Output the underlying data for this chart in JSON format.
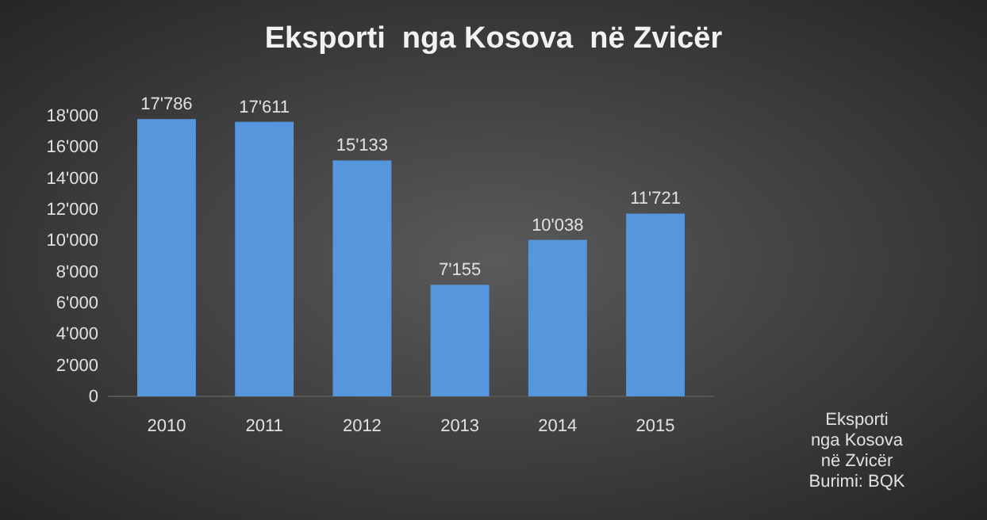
{
  "chart_data": {
    "type": "bar",
    "title": "Eksporti  nga Kosova  në Zvicër",
    "categories": [
      "2010",
      "2011",
      "2012",
      "2013",
      "2014",
      "2015"
    ],
    "values": [
      17786,
      17611,
      15133,
      7155,
      10038,
      11721
    ],
    "value_labels": [
      "17'786",
      "17'611",
      "15'133",
      "7'155",
      "10'038",
      "11'721"
    ],
    "color": "#5596dd",
    "ylim": [
      0,
      18000
    ],
    "yticks": [
      {
        "value": 0,
        "label": "0"
      },
      {
        "value": 2000,
        "label": "2'000"
      },
      {
        "value": 4000,
        "label": "4'000"
      },
      {
        "value": 6000,
        "label": "6'000"
      },
      {
        "value": 8000,
        "label": "8'000"
      },
      {
        "value": 10000,
        "label": "10'000"
      },
      {
        "value": 12000,
        "label": "12'000"
      },
      {
        "value": 14000,
        "label": "14'000"
      },
      {
        "value": 16000,
        "label": "16'000"
      },
      {
        "value": 18000,
        "label": "18'000"
      }
    ],
    "annotations": [
      "Eksporti nga Kosova në Zvicër",
      "Burimi: BQK"
    ]
  }
}
